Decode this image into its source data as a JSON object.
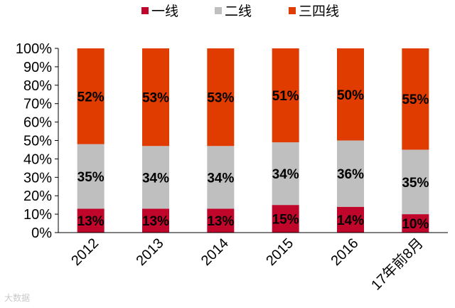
{
  "chart_data": {
    "type": "bar",
    "stacked": true,
    "categories": [
      "2012",
      "2013",
      "2014",
      "2015",
      "2016",
      "17年前8月"
    ],
    "series": [
      {
        "name": "一线",
        "values": [
          13,
          13,
          13,
          15,
          14,
          10
        ],
        "labels": [
          "13%",
          "13%",
          "13%",
          "15%",
          "14%",
          "10%"
        ],
        "color": "#c0062b"
      },
      {
        "name": "二线",
        "values": [
          35,
          34,
          34,
          34,
          36,
          35
        ],
        "labels": [
          "35%",
          "34%",
          "34%",
          "34%",
          "36%",
          "35%"
        ],
        "color": "#bfbfbf"
      },
      {
        "name": "三四线",
        "values": [
          52,
          53,
          53,
          51,
          50,
          55
        ],
        "labels": [
          "52%",
          "53%",
          "53%",
          "51%",
          "50%",
          "55%"
        ],
        "color": "#e03c00"
      }
    ],
    "ylim": [
      0,
      100
    ],
    "yticks": [
      "0%",
      "10%",
      "20%",
      "30%",
      "40%",
      "50%",
      "60%",
      "70%",
      "80%",
      "90%",
      "100%"
    ],
    "legend_position": "top",
    "grid": false
  },
  "watermark": "大数据"
}
